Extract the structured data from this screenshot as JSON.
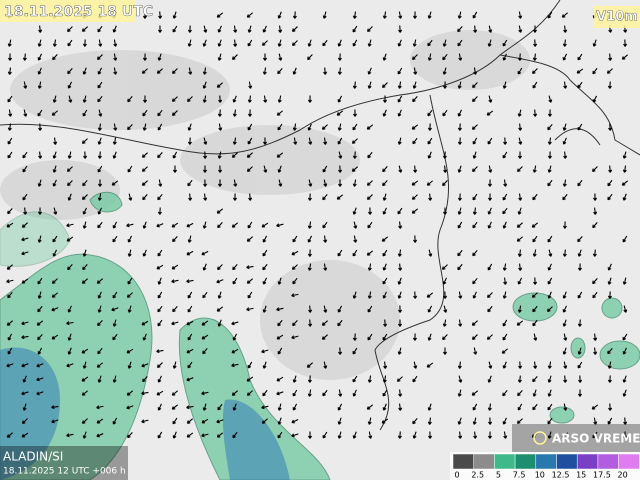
{
  "header": {
    "valid_time": "18.11.2025 18 UTC",
    "field": "V10m"
  },
  "footer": {
    "model": "ALADIN/SI",
    "run": "18.11.2025 12 UTC +006 h",
    "brand": "ARSO VREME"
  },
  "legend": {
    "ticks": [
      0,
      2.5,
      5,
      7.5,
      10,
      12.5,
      15,
      17.5,
      20
    ],
    "colors": [
      "#4a4a4a",
      "#8c8c8c",
      "#3fb98a",
      "#1c8f6e",
      "#2a78b0",
      "#1f4f9e",
      "#7a3fc4",
      "#b25ce0",
      "#e07cf2"
    ]
  }
}
